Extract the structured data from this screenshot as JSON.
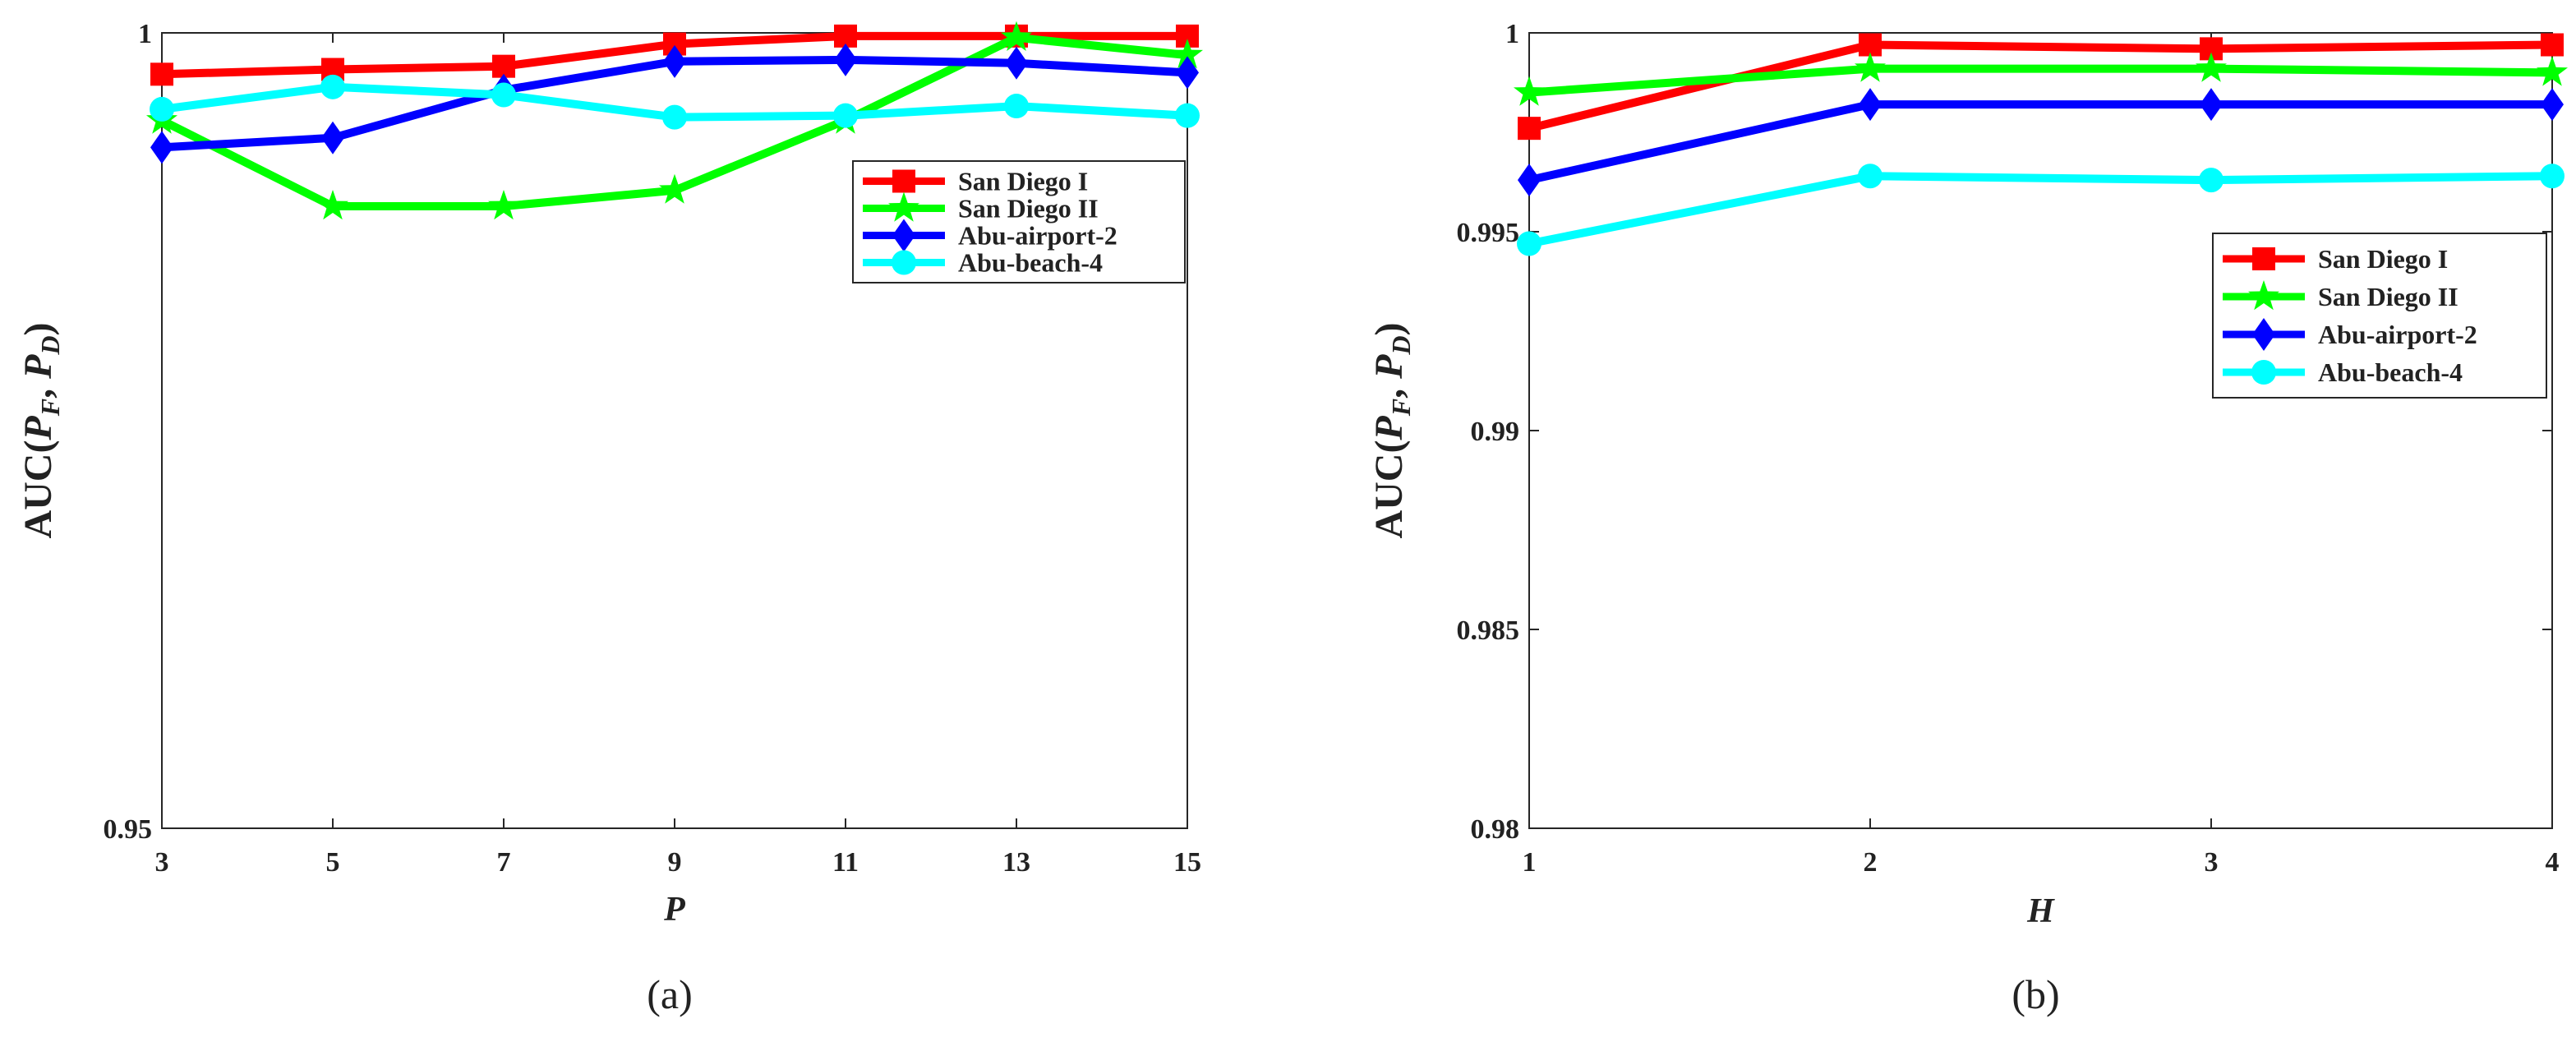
{
  "chart_data": [
    {
      "type": "line",
      "caption": "(a)",
      "xlabel": "P",
      "ylabel_prefix": "AUC(",
      "ylabel_p1": "P",
      "ylabel_s1": "F",
      "ylabel_sep": ", ",
      "ylabel_p2": "P",
      "ylabel_s2": "D",
      "ylabel_suffix": ")",
      "x": [
        3,
        5,
        7,
        9,
        11,
        13,
        15
      ],
      "xlim": [
        3,
        15
      ],
      "ylim": [
        0.95,
        1
      ],
      "xticks": [
        "3",
        "5",
        "7",
        "9",
        "11",
        "13",
        "15"
      ],
      "yticks": [
        {
          "v": 0.95,
          "label": "0.95"
        },
        {
          "v": 1,
          "label": "1"
        }
      ],
      "legend_position": "top-right",
      "series": [
        {
          "name": "San Diego I",
          "color": "#ff0000",
          "marker": "square",
          "values": [
            0.9974,
            0.9977,
            0.9979,
            0.9993,
            0.9998,
            0.9998,
            0.9998
          ]
        },
        {
          "name": "San Diego II",
          "color": "#00ff00",
          "marker": "star",
          "values": [
            0.9945,
            0.9891,
            0.9891,
            0.9901,
            0.9945,
            0.9997,
            0.9986
          ]
        },
        {
          "name": "Abu-airport-2",
          "color": "#0000ff",
          "marker": "diamond",
          "values": [
            0.9928,
            0.9934,
            0.9964,
            0.9982,
            0.9983,
            0.9981,
            0.9975
          ]
        },
        {
          "name": "Abu-beach-4",
          "color": "#00ffff",
          "marker": "circle",
          "values": [
            0.9952,
            0.9966,
            0.9961,
            0.9947,
            0.9948,
            0.9954,
            0.9948
          ]
        }
      ]
    },
    {
      "type": "line",
      "caption": "(b)",
      "xlabel": "H",
      "ylabel_prefix": "AUC(",
      "ylabel_p1": "P",
      "ylabel_s1": "F",
      "ylabel_sep": ", ",
      "ylabel_p2": "P",
      "ylabel_s2": "D",
      "ylabel_suffix": ")",
      "x": [
        1,
        2,
        3,
        4
      ],
      "xlim": [
        1,
        4
      ],
      "ylim": [
        0.98,
        1
      ],
      "xticks": [
        "1",
        "2",
        "3",
        "4"
      ],
      "yticks": [
        {
          "v": 0.98,
          "label": "0.98"
        },
        {
          "v": 0.985,
          "label": "0.985"
        },
        {
          "v": 0.99,
          "label": "0.99"
        },
        {
          "v": 0.995,
          "label": "0.995"
        },
        {
          "v": 1,
          "label": "1"
        }
      ],
      "legend_position": "upper-right",
      "series": [
        {
          "name": "San Diego I",
          "color": "#ff0000",
          "marker": "square",
          "values": [
            0.9976,
            0.9997,
            0.9996,
            0.9997
          ]
        },
        {
          "name": "San Diego II",
          "color": "#00ff00",
          "marker": "star",
          "values": [
            0.9985,
            0.9991,
            0.9991,
            0.999
          ]
        },
        {
          "name": "Abu-airport-2",
          "color": "#0000ff",
          "marker": "diamond",
          "values": [
            0.9963,
            0.9982,
            0.9982,
            0.9982
          ]
        },
        {
          "name": "Abu-beach-4",
          "color": "#00ffff",
          "marker": "circle",
          "values": [
            0.9947,
            0.9964,
            0.9963,
            0.9964
          ]
        }
      ]
    }
  ]
}
